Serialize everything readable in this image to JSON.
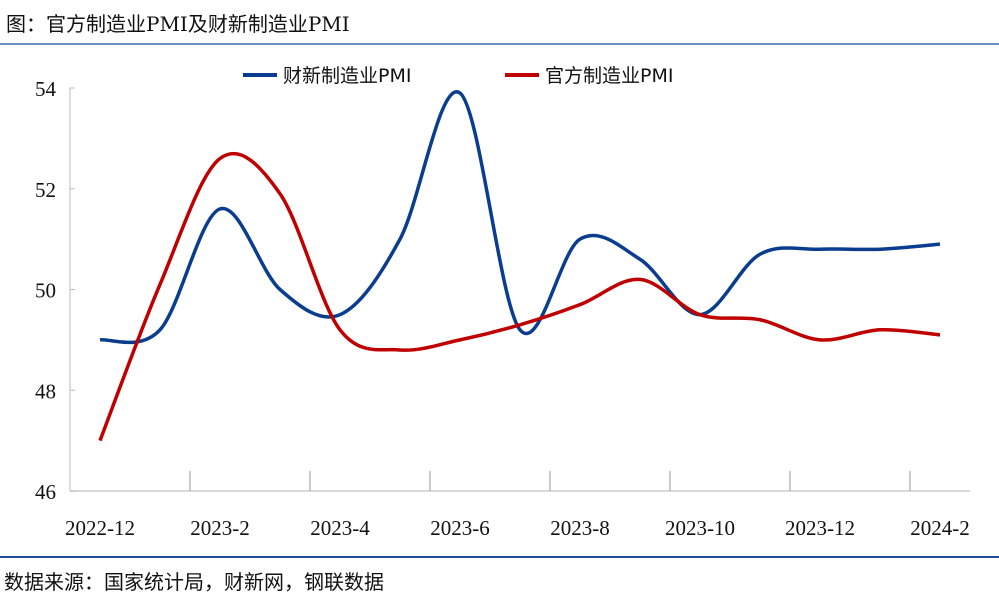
{
  "title": "图：官方制造业PMI及财新制造业PMI",
  "source": "数据来源：国家统计局，财新网，钢联数据",
  "chart_data": {
    "type": "line",
    "title": "官方制造业PMI及财新制造业PMI",
    "xlabel": "",
    "ylabel": "",
    "ylim": [
      46,
      54
    ],
    "yticks": [
      "46",
      "48",
      "50",
      "52",
      "54"
    ],
    "x": [
      "2022-12",
      "2023-1",
      "2023-2",
      "2023-3",
      "2023-4",
      "2023-5",
      "2023-6",
      "2023-7",
      "2023-8",
      "2023-9",
      "2023-10",
      "2023-11",
      "2023-12",
      "2024-1",
      "2024-2"
    ],
    "xtick_labels": [
      "2022-12",
      "2023-2",
      "2023-4",
      "2023-6",
      "2023-8",
      "2023-10",
      "2023-12",
      "2024-2"
    ],
    "legend_position": "top",
    "grid": false,
    "series": [
      {
        "name": "财新制造业PMI",
        "color": "#0a3d8f",
        "values": [
          49.0,
          49.2,
          51.6,
          50.0,
          49.5,
          51.0,
          53.9,
          49.2,
          51.0,
          50.6,
          49.5,
          50.7,
          50.8,
          50.8,
          50.9
        ]
      },
      {
        "name": "官方制造业PMI",
        "color": "#c00000",
        "values": [
          47.0,
          50.1,
          52.6,
          51.9,
          49.2,
          48.8,
          49.0,
          49.3,
          49.7,
          50.2,
          49.5,
          49.4,
          49.0,
          49.2,
          49.1
        ]
      }
    ]
  }
}
